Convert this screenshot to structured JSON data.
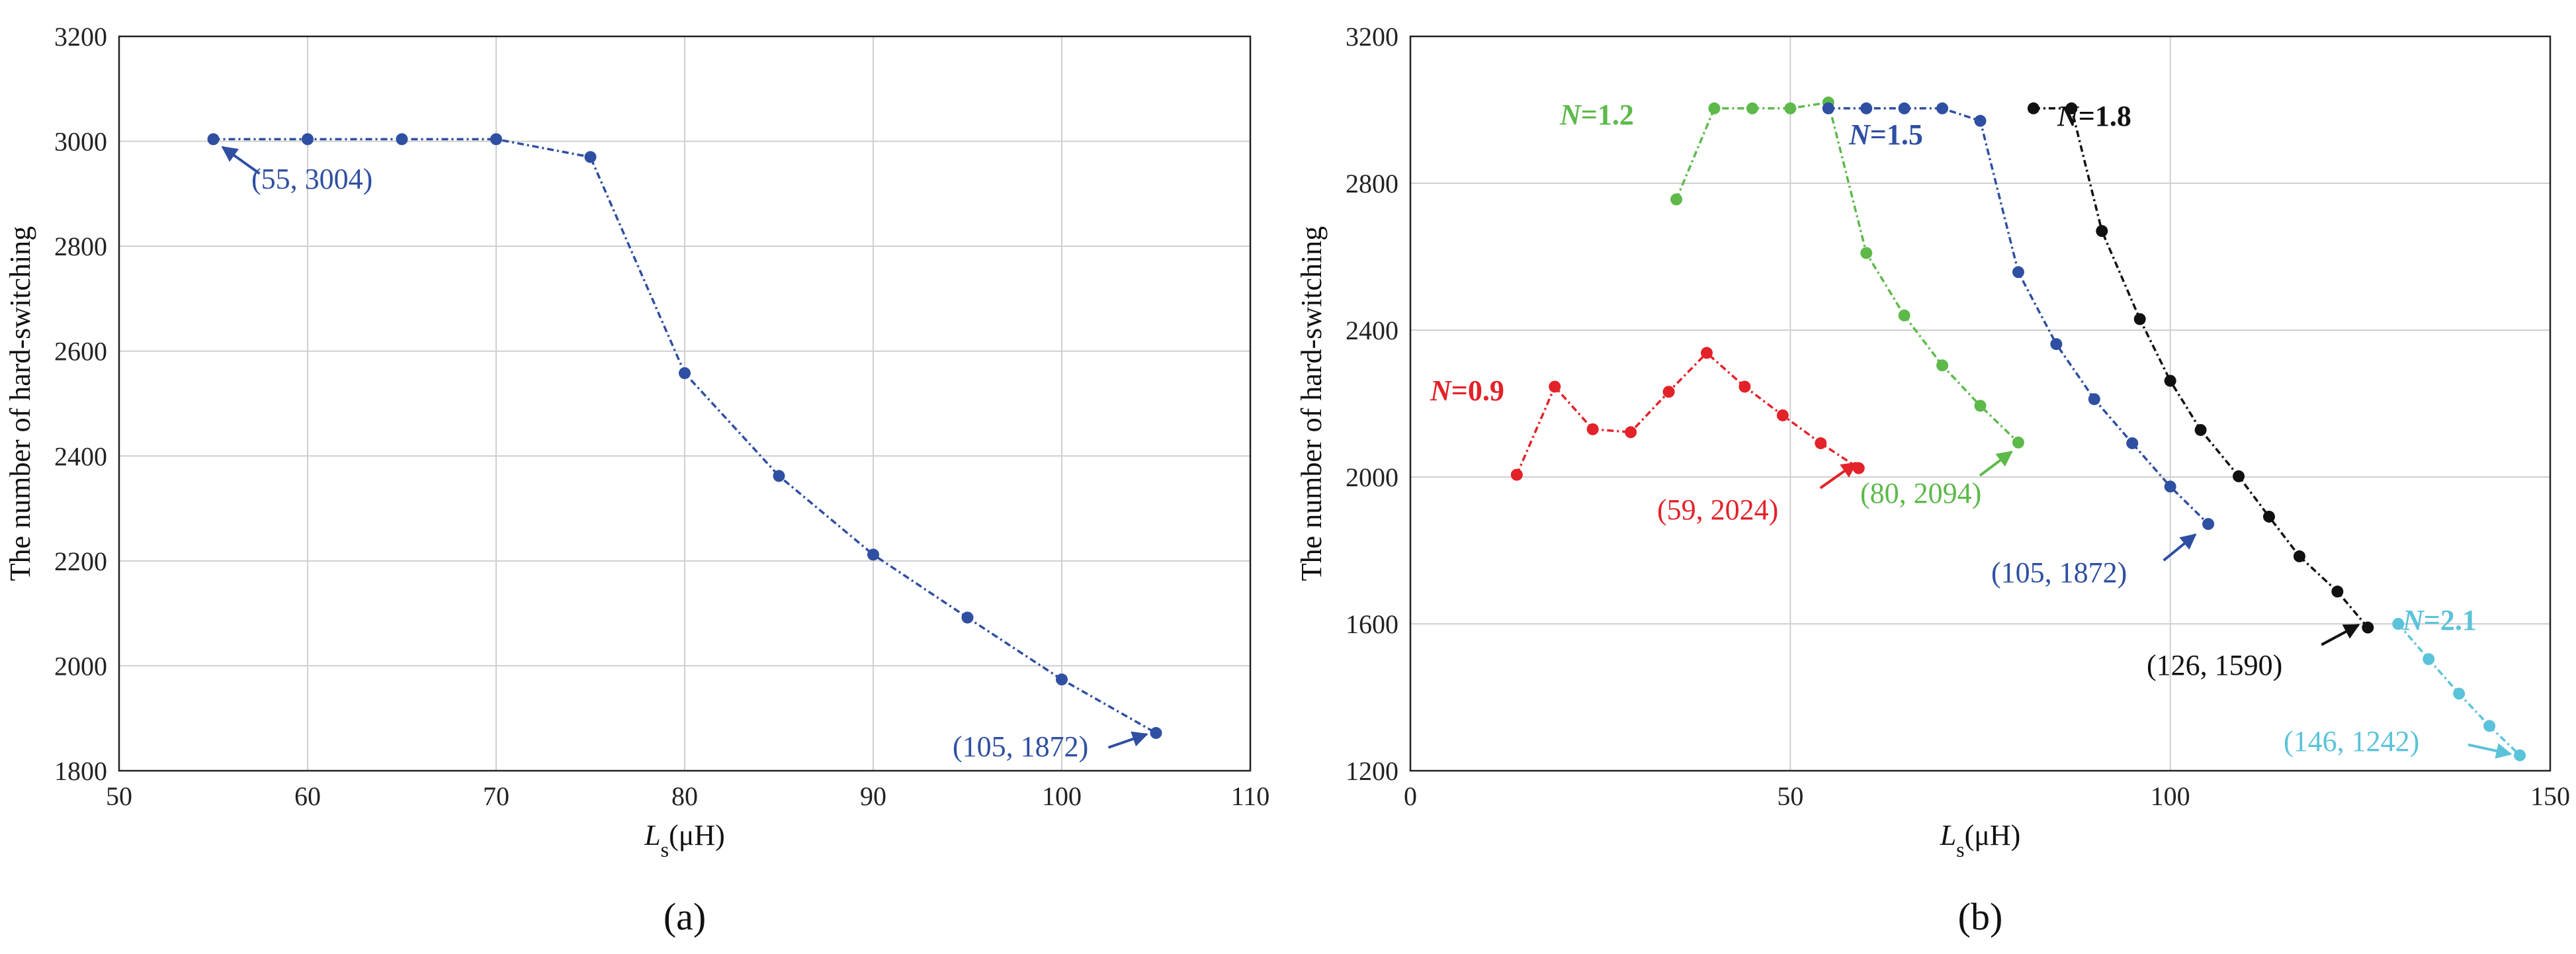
{
  "chart_data": [
    {
      "panel_label": "(a)",
      "type": "line",
      "xlabel": "Ls(μH)",
      "xlabel_main": "L",
      "xlabel_sub": "s",
      "xlabel_rest": "(μH)",
      "ylabel": "The number of hard-switching",
      "xlim": [
        50,
        110
      ],
      "ylim": [
        1800,
        3200
      ],
      "xticks": [
        50,
        60,
        70,
        80,
        90,
        100,
        110
      ],
      "yticks": [
        1800,
        2000,
        2200,
        2400,
        2600,
        2800,
        3000,
        3200
      ],
      "grid": true,
      "series": [
        {
          "color": "#2f4fa2",
          "x": [
            55,
            60,
            65,
            70,
            75,
            80,
            85,
            90,
            95,
            100,
            105
          ],
          "y": [
            3004,
            3004,
            3004,
            3004,
            2970,
            2558,
            2362,
            2212,
            2092,
            1974,
            1872
          ]
        }
      ],
      "annotations": [
        {
          "text": "(55, 3004)",
          "color": "#2f4fa2"
        },
        {
          "text": "(105, 1872)",
          "color": "#2f4fa2"
        }
      ]
    },
    {
      "panel_label": "(b)",
      "type": "line",
      "xlabel": "Ls(μH)",
      "xlabel_main": "L",
      "xlabel_sub": "s",
      "xlabel_rest": "(μH)",
      "ylabel": "The number of hard-switching",
      "xlim": [
        0,
        150
      ],
      "ylim": [
        1200,
        3200
      ],
      "xticks": [
        0,
        50,
        100,
        150
      ],
      "yticks": [
        1200,
        1600,
        2000,
        2400,
        2800,
        3200
      ],
      "grid": true,
      "series": [
        {
          "label_var": "N",
          "label_val": "=0.9",
          "color": "#e32229",
          "x": [
            14,
            19,
            24,
            29,
            34,
            39,
            44,
            49,
            54,
            59
          ],
          "y": [
            2006,
            2246,
            2130,
            2122,
            2232,
            2338,
            2246,
            2168,
            2092,
            2024
          ]
        },
        {
          "label_var": "N",
          "label_val": "=1.2",
          "color": "#5db94a",
          "x": [
            35,
            40,
            45,
            50,
            55,
            60,
            65,
            70,
            75,
            80
          ],
          "y": [
            2756,
            3004,
            3004,
            3004,
            3020,
            2610,
            2440,
            2304,
            2194,
            2094
          ]
        },
        {
          "label_var": "N",
          "label_val": "=1.5",
          "color": "#2f4fa2",
          "x": [
            55,
            60,
            65,
            70,
            75,
            80,
            85,
            90,
            95,
            100,
            105
          ],
          "y": [
            3004,
            3004,
            3004,
            3004,
            2970,
            2558,
            2362,
            2212,
            2092,
            1974,
            1872
          ]
        },
        {
          "label_var": "N",
          "label_val": "=1.8",
          "color": "#111111",
          "x": [
            82,
            87,
            91,
            96,
            100,
            104,
            109,
            113,
            117,
            122,
            126
          ],
          "y": [
            3004,
            3004,
            2670,
            2430,
            2262,
            2128,
            2002,
            1892,
            1784,
            1688,
            1590
          ]
        },
        {
          "label_var": "N",
          "label_val": "=2.1",
          "color": "#5bc3d9",
          "x": [
            130,
            134,
            138,
            142,
            146
          ],
          "y": [
            1600,
            1504,
            1410,
            1322,
            1242
          ]
        }
      ],
      "annotations": [
        {
          "text": "(59, 2024)",
          "color": "#e32229"
        },
        {
          "text": "(80, 2094)",
          "color": "#5db94a"
        },
        {
          "text": "(105, 1872)",
          "color": "#2f4fa2"
        },
        {
          "text": "(126, 1590)",
          "color": "#111111"
        },
        {
          "text": "(146, 1242)",
          "color": "#5bc3d9"
        }
      ]
    }
  ]
}
